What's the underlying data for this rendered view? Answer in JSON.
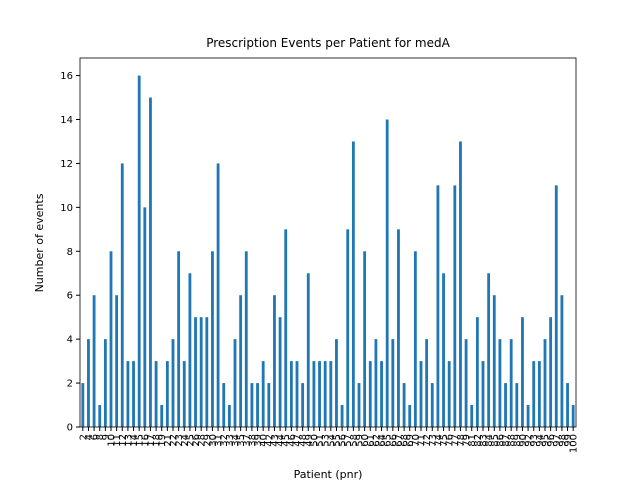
{
  "chart_data": {
    "type": "bar",
    "title": "Prescription Events per Patient for medA",
    "xlabel": "Patient (pnr)",
    "ylabel": "Number of events",
    "color": "#1f77b4",
    "categories": [
      "2",
      "4",
      "6",
      "8",
      "9",
      "10",
      "11",
      "12",
      "13",
      "14",
      "15",
      "16",
      "17",
      "18",
      "19",
      "21",
      "22",
      "23",
      "24",
      "25",
      "26",
      "28",
      "29",
      "30",
      "31",
      "32",
      "33",
      "34",
      "35",
      "37",
      "38",
      "39",
      "40",
      "42",
      "43",
      "44",
      "45",
      "46",
      "47",
      "48",
      "49",
      "50",
      "51",
      "53",
      "54",
      "55",
      "56",
      "57",
      "58",
      "59",
      "60",
      "61",
      "62",
      "64",
      "65",
      "66",
      "67",
      "68",
      "69",
      "70",
      "71",
      "72",
      "73",
      "74",
      "75",
      "76",
      "77",
      "78",
      "79",
      "81",
      "82",
      "83",
      "84",
      "85",
      "86",
      "87",
      "88",
      "89",
      "90",
      "92",
      "93",
      "94",
      "95",
      "96",
      "97",
      "98",
      "99",
      "100"
    ],
    "values": [
      2,
      4,
      6,
      1,
      4,
      8,
      6,
      12,
      3,
      3,
      16,
      10,
      15,
      3,
      1,
      3,
      4,
      8,
      3,
      7,
      5,
      5,
      5,
      8,
      12,
      2,
      1,
      4,
      6,
      8,
      2,
      2,
      3,
      2,
      6,
      5,
      9,
      3,
      3,
      2,
      7,
      3,
      3,
      3,
      3,
      4,
      1,
      9,
      13,
      2,
      8,
      3,
      4,
      3,
      14,
      4,
      9,
      2,
      1,
      8,
      3,
      4,
      2,
      11,
      7,
      3,
      11,
      13,
      4,
      1,
      5,
      3,
      7,
      6,
      4,
      2,
      4,
      2,
      5,
      1,
      3,
      3,
      4,
      5,
      11,
      6,
      2,
      1
    ],
    "ylim": [
      0,
      16.8
    ],
    "yticks": [
      0,
      2,
      4,
      6,
      8,
      10,
      12,
      14,
      16
    ],
    "grid": false
  }
}
